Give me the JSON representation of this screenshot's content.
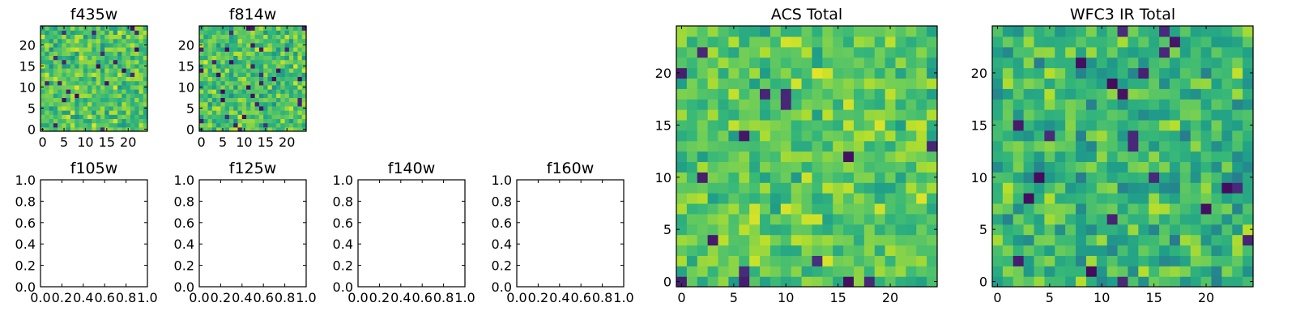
{
  "figure": {
    "colormap": "viridis",
    "colors": {
      "viridis_low": "#440154",
      "viridis_mid": "#21918c",
      "viridis_high": "#fde725",
      "frame": "#000000",
      "background": "#ffffff"
    }
  },
  "chart_data": [
    {
      "type": "heatmap",
      "title": "f435w",
      "grid_size": [
        25,
        25
      ],
      "xlim": [
        -0.5,
        24.5
      ],
      "ylim": [
        -0.5,
        24.5
      ],
      "xticks": [
        0,
        5,
        10,
        15,
        20
      ],
      "yticks": [
        0,
        5,
        10,
        15,
        20
      ],
      "noise_seed": 435,
      "value_mean": 0.72,
      "value_spread": 0.16,
      "dark_fraction": 0.04
    },
    {
      "type": "heatmap",
      "title": "f814w",
      "grid_size": [
        25,
        25
      ],
      "xlim": [
        -0.5,
        24.5
      ],
      "ylim": [
        -0.5,
        24.5
      ],
      "xticks": [
        0,
        5,
        10,
        15,
        20
      ],
      "yticks": [
        0,
        5,
        10,
        15,
        20
      ],
      "noise_seed": 814,
      "value_mean": 0.72,
      "value_spread": 0.16,
      "dark_fraction": 0.05
    },
    {
      "type": "heatmap",
      "title": "f105w",
      "empty": true,
      "xlim": [
        0,
        1
      ],
      "ylim": [
        0,
        1
      ],
      "xticks": [
        "0.0",
        "0.2",
        "0.4",
        "0.6",
        "0.8",
        "1.0"
      ],
      "yticks": [
        "0.0",
        "0.2",
        "0.4",
        "0.6",
        "0.8",
        "1.0"
      ]
    },
    {
      "type": "heatmap",
      "title": "f125w",
      "empty": true,
      "xlim": [
        0,
        1
      ],
      "ylim": [
        0,
        1
      ],
      "xticks": [
        "0.0",
        "0.2",
        "0.4",
        "0.6",
        "0.8",
        "1.0"
      ],
      "yticks": [
        "0.0",
        "0.2",
        "0.4",
        "0.6",
        "0.8",
        "1.0"
      ]
    },
    {
      "type": "heatmap",
      "title": "f140w",
      "empty": true,
      "xlim": [
        0,
        1
      ],
      "ylim": [
        0,
        1
      ],
      "xticks": [
        "0.0",
        "0.2",
        "0.4",
        "0.6",
        "0.8",
        "1.0"
      ],
      "yticks": [
        "0.0",
        "0.2",
        "0.4",
        "0.6",
        "0.8",
        "1.0"
      ]
    },
    {
      "type": "heatmap",
      "title": "f160w",
      "empty": true,
      "xlim": [
        0,
        1
      ],
      "ylim": [
        0,
        1
      ],
      "xticks": [
        "0.0",
        "0.2",
        "0.4",
        "0.6",
        "0.8",
        "1.0"
      ],
      "yticks": [
        "0.0",
        "0.2",
        "0.4",
        "0.6",
        "0.8",
        "1.0"
      ]
    },
    {
      "type": "heatmap",
      "title": "ACS Total",
      "grid_size": [
        25,
        25
      ],
      "xlim": [
        -0.5,
        24.5
      ],
      "ylim": [
        -0.5,
        24.5
      ],
      "xticks": [
        0,
        5,
        10,
        15,
        20
      ],
      "yticks": [
        0,
        5,
        10,
        15,
        20
      ],
      "noise_seed": 2020,
      "value_mean": 0.74,
      "value_spread": 0.14,
      "dark_fraction": 0.03
    },
    {
      "type": "heatmap",
      "title": "WFC3 IR Total",
      "grid_size": [
        25,
        25
      ],
      "xlim": [
        -0.5,
        24.5
      ],
      "ylim": [
        -0.5,
        24.5
      ],
      "xticks": [
        0,
        5,
        10,
        15,
        20
      ],
      "yticks": [
        0,
        5,
        10,
        15,
        20
      ],
      "noise_seed": 3030,
      "value_mean": 0.66,
      "value_spread": 0.16,
      "dark_fraction": 0.05
    }
  ]
}
